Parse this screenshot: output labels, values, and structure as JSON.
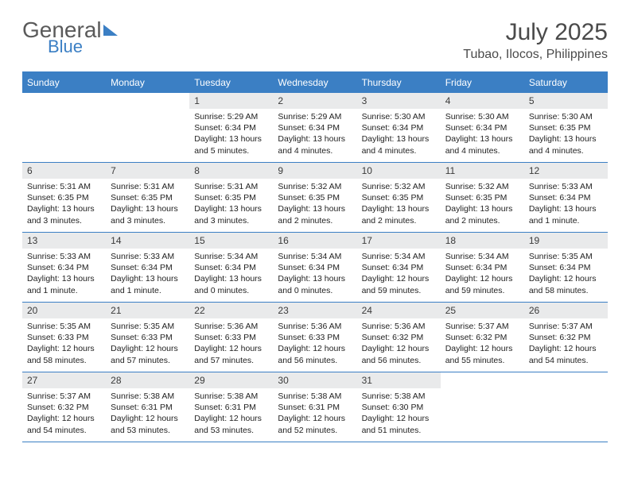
{
  "brand": {
    "line1": "General",
    "line2": "Blue"
  },
  "title": {
    "month": "July 2025",
    "location": "Tubao, Ilocos, Philippines"
  },
  "colors": {
    "accent": "#3b7fc4",
    "header_gray": "#e9eaeb",
    "text": "#222222"
  },
  "weekdays": [
    "Sunday",
    "Monday",
    "Tuesday",
    "Wednesday",
    "Thursday",
    "Friday",
    "Saturday"
  ],
  "typography": {
    "title_fontsize": 30,
    "location_fontsize": 16,
    "header_fontsize": 12,
    "daynum_fontsize": 12,
    "body_fontsize": 10.5
  },
  "weeks": [
    [
      null,
      null,
      {
        "num": "1",
        "sunrise": "5:29 AM",
        "sunset": "6:34 PM",
        "daylight": "13 hours and 5 minutes."
      },
      {
        "num": "2",
        "sunrise": "5:29 AM",
        "sunset": "6:34 PM",
        "daylight": "13 hours and 4 minutes."
      },
      {
        "num": "3",
        "sunrise": "5:30 AM",
        "sunset": "6:34 PM",
        "daylight": "13 hours and 4 minutes."
      },
      {
        "num": "4",
        "sunrise": "5:30 AM",
        "sunset": "6:34 PM",
        "daylight": "13 hours and 4 minutes."
      },
      {
        "num": "5",
        "sunrise": "5:30 AM",
        "sunset": "6:35 PM",
        "daylight": "13 hours and 4 minutes."
      }
    ],
    [
      {
        "num": "6",
        "sunrise": "5:31 AM",
        "sunset": "6:35 PM",
        "daylight": "13 hours and 3 minutes."
      },
      {
        "num": "7",
        "sunrise": "5:31 AM",
        "sunset": "6:35 PM",
        "daylight": "13 hours and 3 minutes."
      },
      {
        "num": "8",
        "sunrise": "5:31 AM",
        "sunset": "6:35 PM",
        "daylight": "13 hours and 3 minutes."
      },
      {
        "num": "9",
        "sunrise": "5:32 AM",
        "sunset": "6:35 PM",
        "daylight": "13 hours and 2 minutes."
      },
      {
        "num": "10",
        "sunrise": "5:32 AM",
        "sunset": "6:35 PM",
        "daylight": "13 hours and 2 minutes."
      },
      {
        "num": "11",
        "sunrise": "5:32 AM",
        "sunset": "6:35 PM",
        "daylight": "13 hours and 2 minutes."
      },
      {
        "num": "12",
        "sunrise": "5:33 AM",
        "sunset": "6:34 PM",
        "daylight": "13 hours and 1 minute."
      }
    ],
    [
      {
        "num": "13",
        "sunrise": "5:33 AM",
        "sunset": "6:34 PM",
        "daylight": "13 hours and 1 minute."
      },
      {
        "num": "14",
        "sunrise": "5:33 AM",
        "sunset": "6:34 PM",
        "daylight": "13 hours and 1 minute."
      },
      {
        "num": "15",
        "sunrise": "5:34 AM",
        "sunset": "6:34 PM",
        "daylight": "13 hours and 0 minutes."
      },
      {
        "num": "16",
        "sunrise": "5:34 AM",
        "sunset": "6:34 PM",
        "daylight": "13 hours and 0 minutes."
      },
      {
        "num": "17",
        "sunrise": "5:34 AM",
        "sunset": "6:34 PM",
        "daylight": "12 hours and 59 minutes."
      },
      {
        "num": "18",
        "sunrise": "5:34 AM",
        "sunset": "6:34 PM",
        "daylight": "12 hours and 59 minutes."
      },
      {
        "num": "19",
        "sunrise": "5:35 AM",
        "sunset": "6:34 PM",
        "daylight": "12 hours and 58 minutes."
      }
    ],
    [
      {
        "num": "20",
        "sunrise": "5:35 AM",
        "sunset": "6:33 PM",
        "daylight": "12 hours and 58 minutes."
      },
      {
        "num": "21",
        "sunrise": "5:35 AM",
        "sunset": "6:33 PM",
        "daylight": "12 hours and 57 minutes."
      },
      {
        "num": "22",
        "sunrise": "5:36 AM",
        "sunset": "6:33 PM",
        "daylight": "12 hours and 57 minutes."
      },
      {
        "num": "23",
        "sunrise": "5:36 AM",
        "sunset": "6:33 PM",
        "daylight": "12 hours and 56 minutes."
      },
      {
        "num": "24",
        "sunrise": "5:36 AM",
        "sunset": "6:32 PM",
        "daylight": "12 hours and 56 minutes."
      },
      {
        "num": "25",
        "sunrise": "5:37 AM",
        "sunset": "6:32 PM",
        "daylight": "12 hours and 55 minutes."
      },
      {
        "num": "26",
        "sunrise": "5:37 AM",
        "sunset": "6:32 PM",
        "daylight": "12 hours and 54 minutes."
      }
    ],
    [
      {
        "num": "27",
        "sunrise": "5:37 AM",
        "sunset": "6:32 PM",
        "daylight": "12 hours and 54 minutes."
      },
      {
        "num": "28",
        "sunrise": "5:38 AM",
        "sunset": "6:31 PM",
        "daylight": "12 hours and 53 minutes."
      },
      {
        "num": "29",
        "sunrise": "5:38 AM",
        "sunset": "6:31 PM",
        "daylight": "12 hours and 53 minutes."
      },
      {
        "num": "30",
        "sunrise": "5:38 AM",
        "sunset": "6:31 PM",
        "daylight": "12 hours and 52 minutes."
      },
      {
        "num": "31",
        "sunrise": "5:38 AM",
        "sunset": "6:30 PM",
        "daylight": "12 hours and 51 minutes."
      },
      null,
      null
    ]
  ],
  "labels": {
    "sunrise": "Sunrise:",
    "sunset": "Sunset:",
    "daylight": "Daylight:"
  }
}
